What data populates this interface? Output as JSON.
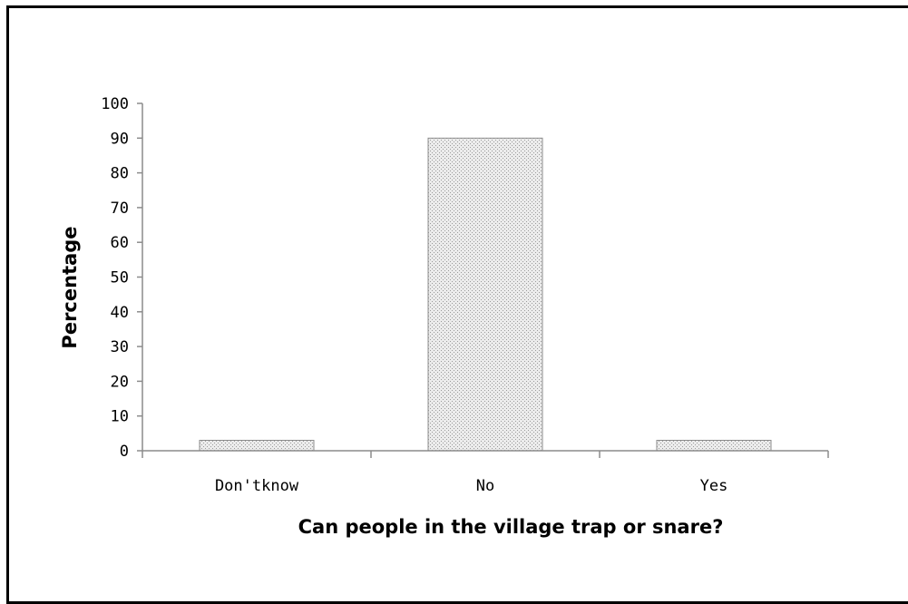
{
  "chart_data": {
    "type": "bar",
    "title": "",
    "xlabel": "Can people in the village trap or snare?",
    "ylabel": "Percentage",
    "categories": [
      "Don'tknow",
      "No",
      "Yes"
    ],
    "values": [
      3,
      90,
      3
    ],
    "ylim": [
      0,
      100
    ],
    "yticks": [
      "0",
      "10",
      "20",
      "30",
      "40",
      "50",
      "60",
      "70",
      "80",
      "90",
      "100"
    ],
    "grid": false,
    "legend": "none",
    "colors": {
      "bar_fill": "#e8e8e8",
      "bar_pattern_dot": "#9a9a9a",
      "bar_stroke": "#8c8c8c",
      "axis": "#8c8c8c",
      "frame": "#000000"
    }
  }
}
